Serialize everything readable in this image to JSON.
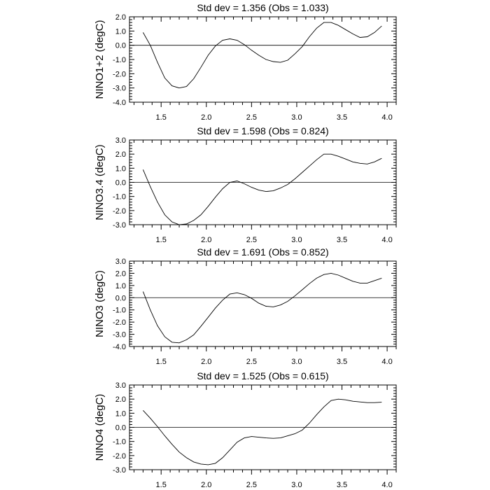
{
  "chart_data": [
    {
      "type": "line",
      "title": "Std dev = 1.356 (Obs = 1.033)",
      "ylabel": "NINO1+2 (degC)",
      "xlabel": "",
      "xlim": [
        1.15,
        4.1
      ],
      "ylim": [
        -4.0,
        2.0
      ],
      "xticks": [
        "1.5",
        "2.0",
        "2.5",
        "3.0",
        "3.5",
        "4.0"
      ],
      "yticks": [
        "-4.0",
        "-3.0",
        "-2.0",
        "-1.0",
        "0.0",
        "1.0",
        "2.0"
      ],
      "series": [
        {
          "name": "NINO1+2",
          "x": [
            1.3,
            1.38,
            1.46,
            1.54,
            1.62,
            1.7,
            1.78,
            1.86,
            1.94,
            2.02,
            2.1,
            2.18,
            2.26,
            2.34,
            2.42,
            2.5,
            2.58,
            2.66,
            2.74,
            2.82,
            2.9,
            2.98,
            3.06,
            3.14,
            3.22,
            3.3,
            3.38,
            3.46,
            3.54,
            3.62,
            3.7,
            3.78,
            3.86,
            3.94
          ],
          "y": [
            0.9,
            0.0,
            -1.2,
            -2.3,
            -2.85,
            -3.0,
            -2.9,
            -2.35,
            -1.55,
            -0.7,
            -0.05,
            0.35,
            0.45,
            0.35,
            0.05,
            -0.35,
            -0.7,
            -1.0,
            -1.15,
            -1.2,
            -1.05,
            -0.6,
            -0.1,
            0.6,
            1.2,
            1.6,
            1.6,
            1.4,
            1.1,
            0.8,
            0.55,
            0.6,
            0.9,
            1.35
          ]
        }
      ]
    },
    {
      "type": "line",
      "title": "Std dev = 1.598 (Obs = 0.824)",
      "ylabel": "NINO3.4 (degC)",
      "xlabel": "",
      "xlim": [
        1.15,
        4.1
      ],
      "ylim": [
        -3.0,
        3.0
      ],
      "xticks": [
        "1.5",
        "2.0",
        "2.5",
        "3.0",
        "3.5",
        "4.0"
      ],
      "yticks": [
        "-3.0",
        "-2.0",
        "-1.0",
        "0.0",
        "1.0",
        "2.0",
        "3.0"
      ],
      "series": [
        {
          "name": "NINO3.4",
          "x": [
            1.3,
            1.38,
            1.46,
            1.54,
            1.62,
            1.7,
            1.78,
            1.86,
            1.94,
            2.02,
            2.1,
            2.18,
            2.26,
            2.34,
            2.42,
            2.5,
            2.58,
            2.66,
            2.74,
            2.82,
            2.9,
            2.98,
            3.06,
            3.14,
            3.22,
            3.3,
            3.38,
            3.46,
            3.54,
            3.62,
            3.7,
            3.78,
            3.86,
            3.94
          ],
          "y": [
            0.9,
            -0.3,
            -1.4,
            -2.3,
            -2.8,
            -3.0,
            -2.95,
            -2.7,
            -2.3,
            -1.7,
            -1.05,
            -0.45,
            0.0,
            0.1,
            -0.1,
            -0.35,
            -0.55,
            -0.65,
            -0.6,
            -0.4,
            -0.15,
            0.25,
            0.7,
            1.15,
            1.6,
            2.0,
            2.0,
            1.85,
            1.65,
            1.45,
            1.35,
            1.3,
            1.45,
            1.7
          ]
        }
      ]
    },
    {
      "type": "line",
      "title": "Std dev = 1.691 (Obs = 0.852)",
      "ylabel": "NINO3 (degC)",
      "xlabel": "",
      "xlim": [
        1.15,
        4.1
      ],
      "ylim": [
        -4.0,
        3.0
      ],
      "xticks": [
        "1.5",
        "2.0",
        "2.5",
        "3.0",
        "3.5",
        "4.0"
      ],
      "yticks": [
        "-4.0",
        "-3.0",
        "-2.0",
        "-1.0",
        "0.0",
        "1.0",
        "2.0",
        "3.0"
      ],
      "series": [
        {
          "name": "NINO3",
          "x": [
            1.3,
            1.38,
            1.46,
            1.54,
            1.62,
            1.7,
            1.78,
            1.86,
            1.94,
            2.02,
            2.1,
            2.18,
            2.26,
            2.34,
            2.42,
            2.5,
            2.58,
            2.66,
            2.74,
            2.82,
            2.9,
            2.98,
            3.06,
            3.14,
            3.22,
            3.3,
            3.38,
            3.46,
            3.54,
            3.62,
            3.7,
            3.78,
            3.86,
            3.94
          ],
          "y": [
            0.5,
            -1.0,
            -2.3,
            -3.2,
            -3.65,
            -3.7,
            -3.45,
            -3.05,
            -2.35,
            -1.6,
            -0.85,
            -0.2,
            0.3,
            0.4,
            0.25,
            -0.05,
            -0.45,
            -0.7,
            -0.75,
            -0.6,
            -0.3,
            0.15,
            0.65,
            1.15,
            1.6,
            1.9,
            2.0,
            1.85,
            1.6,
            1.35,
            1.2,
            1.2,
            1.4,
            1.6
          ]
        }
      ]
    },
    {
      "type": "line",
      "title": "Std dev = 1.525 (Obs = 0.615)",
      "ylabel": "NINO4 (degC)",
      "xlabel": "",
      "xlim": [
        1.15,
        4.1
      ],
      "ylim": [
        -3.0,
        3.0
      ],
      "xticks": [
        "1.5",
        "2.0",
        "2.5",
        "3.0",
        "3.5",
        "4.0"
      ],
      "yticks": [
        "-3.0",
        "-2.0",
        "-1.0",
        "0.0",
        "1.0",
        "2.0",
        "3.0"
      ],
      "series": [
        {
          "name": "NINO4",
          "x": [
            1.3,
            1.38,
            1.46,
            1.54,
            1.62,
            1.7,
            1.78,
            1.86,
            1.94,
            2.02,
            2.1,
            2.18,
            2.26,
            2.34,
            2.42,
            2.5,
            2.58,
            2.66,
            2.74,
            2.82,
            2.9,
            2.98,
            3.06,
            3.14,
            3.22,
            3.3,
            3.38,
            3.46,
            3.54,
            3.62,
            3.7,
            3.78,
            3.86,
            3.94
          ],
          "y": [
            1.2,
            0.65,
            0.05,
            -0.6,
            -1.2,
            -1.75,
            -2.15,
            -2.45,
            -2.6,
            -2.65,
            -2.55,
            -2.15,
            -1.6,
            -1.05,
            -0.75,
            -0.65,
            -0.7,
            -0.75,
            -0.78,
            -0.75,
            -0.6,
            -0.45,
            -0.2,
            0.3,
            0.9,
            1.45,
            1.9,
            2.0,
            1.95,
            1.85,
            1.8,
            1.75,
            1.75,
            1.78
          ]
        }
      ]
    }
  ]
}
